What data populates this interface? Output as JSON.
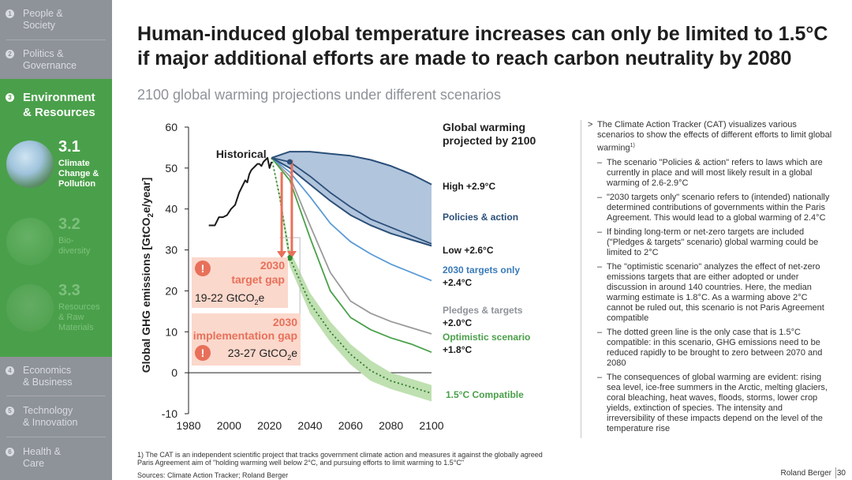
{
  "sidebar": {
    "items": [
      {
        "num": "1",
        "label_l1": "People &",
        "label_l2": "Society"
      },
      {
        "num": "2",
        "label_l1": "Politics &",
        "label_l2": "Governance"
      },
      {
        "num": "3",
        "label_l1": "Environment",
        "label_l2": "& Resources"
      },
      {
        "num": "4",
        "label_l1": "Economics",
        "label_l2": "& Business"
      },
      {
        "num": "5",
        "label_l1": "Technology",
        "label_l2": "& Innovation"
      },
      {
        "num": "6",
        "label_l1": "Health &",
        "label_l2": "Care"
      }
    ],
    "subitems": [
      {
        "num": "3.1",
        "l1": "Climate",
        "l2": "Change &",
        "l3": "Pollution"
      },
      {
        "num": "3.2",
        "l1": "Bio-",
        "l2": "diversity",
        "l3": ""
      },
      {
        "num": "3.3",
        "l1": "Resources",
        "l2": "& Raw",
        "l3": "Materials"
      }
    ]
  },
  "header": {
    "title_l1": "Human-induced global temperature increases can only be limited to 1.5°C",
    "title_l2": "if major additional efforts are made to reach carbon neutrality by 2080",
    "subtitle": "2100 global warming projections under different scenarios"
  },
  "chart_data": {
    "type": "line",
    "title": "",
    "xlabel": "",
    "ylabel": "Global GHG emissions [GtCO2e/year]",
    "xlim": [
      1980,
      2100
    ],
    "ylim": [
      -10,
      60
    ],
    "xticks": [
      1980,
      2000,
      2020,
      2040,
      2060,
      2080,
      2100
    ],
    "yticks": [
      -10,
      0,
      10,
      20,
      30,
      40,
      50,
      60
    ],
    "legend_title_l1": "Global warming",
    "legend_title_l2": "projected by 2100",
    "historical_label": "Historical",
    "series": [
      {
        "name": "Historical",
        "color": "#1a1a1a",
        "x": [
          1990,
          1993,
          1994,
          1995,
          1997,
          1999,
          2001,
          2003,
          2005,
          2007,
          2008,
          2009,
          2010,
          2011,
          2012,
          2013,
          2014,
          2015,
          2016,
          2017,
          2018,
          2019,
          2020,
          2021
        ],
        "values": [
          36,
          36,
          37,
          38,
          38,
          38.5,
          40,
          41,
          44,
          46,
          47,
          46.5,
          48.5,
          49.5,
          50,
          50.5,
          51,
          51,
          50.5,
          51.5,
          52,
          52.5,
          50,
          51.5
        ]
      },
      {
        "name": "High",
        "label_l1": "High +2.9°C",
        "label_l2": "",
        "label_color": "#1a1a1a",
        "color": "#2b4f78",
        "x": [
          2021,
          2030,
          2040,
          2050,
          2060,
          2070,
          2080,
          2090,
          2100
        ],
        "values": [
          52.5,
          54,
          54,
          53.5,
          53,
          52,
          50.5,
          48.5,
          46
        ]
      },
      {
        "name": "Policies & action",
        "label_l1": "Policies & action",
        "label_l2": "",
        "label_color": "#2b4f78",
        "color": "#2b4f78",
        "x": [
          2021,
          2030,
          2040,
          2050,
          2060,
          2070,
          2080,
          2090,
          2100
        ],
        "values": [
          52.5,
          51.5,
          48,
          44,
          40.5,
          37.5,
          35.5,
          33.5,
          31.5
        ]
      },
      {
        "name": "Low",
        "label_l1": "Low +2.6°C",
        "label_l2": "",
        "label_color": "#1a1a1a",
        "color": "#2b4f78",
        "x": [
          2021,
          2030,
          2040,
          2050,
          2060,
          2070,
          2080,
          2090,
          2100
        ],
        "values": [
          52.5,
          50,
          46,
          42,
          38.5,
          36,
          34,
          32.5,
          31
        ]
      },
      {
        "name": "2030 targets only",
        "label_l1": "2030 targets only",
        "label_l2": "+2.4°C",
        "label_color": "#3a7ab8",
        "color": "#5b9bd5",
        "x": [
          2021,
          2030,
          2040,
          2050,
          2060,
          2070,
          2080,
          2090,
          2100
        ],
        "values": [
          52.5,
          49,
          43,
          36.5,
          32,
          29,
          26.5,
          24.5,
          22.5
        ]
      },
      {
        "name": "Pledges & targets",
        "label_l1": "Pledges & targets",
        "label_l2": "+2.0°C",
        "label_color": "#8e9299",
        "color": "#9a9a9a",
        "x": [
          2021,
          2030,
          2040,
          2050,
          2060,
          2070,
          2080,
          2090,
          2100
        ],
        "values": [
          52.5,
          48,
          36,
          24.5,
          17.5,
          14.5,
          12.5,
          11,
          9.5
        ]
      },
      {
        "name": "Optimistic scenario",
        "label_l1": "Optimistic scenario",
        "label_l2": "+1.8°C",
        "label_color": "#4aa04a",
        "color": "#4aa04a",
        "x": [
          2021,
          2030,
          2040,
          2050,
          2060,
          2070,
          2080,
          2090,
          2100
        ],
        "values": [
          52.5,
          47,
          33,
          20,
          13.5,
          10.5,
          8.5,
          7,
          5
        ]
      },
      {
        "name": "1.5°C Compatible",
        "label_l1": "1.5°C Compatible",
        "label_l2": "",
        "label_color": "#4aa04a",
        "color": "#3d8a3d",
        "x": [
          2021,
          2025,
          2030,
          2040,
          2050,
          2060,
          2070,
          2080,
          2090,
          2100
        ],
        "values": [
          52.5,
          43,
          28,
          17,
          10,
          4.5,
          0.5,
          -2,
          -3.5,
          -5
        ],
        "band_half_width": [
          0,
          1,
          2,
          2.5,
          2.5,
          2.5,
          2.5,
          2,
          2,
          2
        ]
      }
    ],
    "annotations": {
      "target_gap": {
        "year_l1": "2030",
        "year_l2": "target gap",
        "value": "19-22 GtCO2e",
        "from": 49,
        "to": 28
      },
      "implementation_gap": {
        "year_l1": "2030",
        "year_l2": "implementation gap",
        "value": "23-27 GtCO2e",
        "from": 52,
        "to": 28
      },
      "badge": "!"
    }
  },
  "panel": {
    "intro": "The Climate Action Tracker (CAT) visualizes various scenarios to show the effects of different efforts to limit global warming",
    "bullets": [
      "The scenario \"Policies & action\" refers to laws which are currently in place and will most likely result in a global warming of 2.6-2.9°C",
      "\"2030 targets only\" scenario refers to (intended) nationally determined contributions of governments within the Paris Agreement. This would lead to a global warming of 2.4°C",
      "If binding long-term or net-zero targets are included (\"Pledges & targets\" scenario) global warming could be limited to 2°C",
      "The \"optimistic scenario\" analyzes the effect of net-zero emissions targets that are either adopted or under discussion in around 140 countries. Here, the median warming estimate is 1.8°C. As a warming above 2°C cannot be ruled out, this scenario is not Paris Agreement compatible",
      "The dotted green line is the only case that is 1.5°C compatible: in this scenario, GHG emissions need to be reduced rapidly to be brought to zero between 2070 and 2080",
      "The consequences of global warming are evident: rising sea level, ice-free summers in the Arctic, melting glaciers, coral bleaching, heat waves, floods, storms, lower crop yields, extinction of species. The intensity and irreversibility of these impacts depend on the level of the temperature rise"
    ]
  },
  "footer": {
    "footnote_l1": "1) The CAT is an independent scientific project that tracks government climate action and measures it against the globally agreed",
    "footnote_l2": "Paris Agreement aim of \"holding warming well below 2°C, and pursuing efforts to limit warming to 1.5°C\"",
    "sources": "Sources: Climate Action Tracker; Roland Berger",
    "brand": "Roland Berger",
    "page": "30"
  },
  "colors": {
    "sidebar_bg": "#8e9299",
    "accent_green": "#4aa04a",
    "navy": "#2b4f78",
    "gap_red": "#e8705a",
    "gap_fill": "#fbd8cc"
  }
}
